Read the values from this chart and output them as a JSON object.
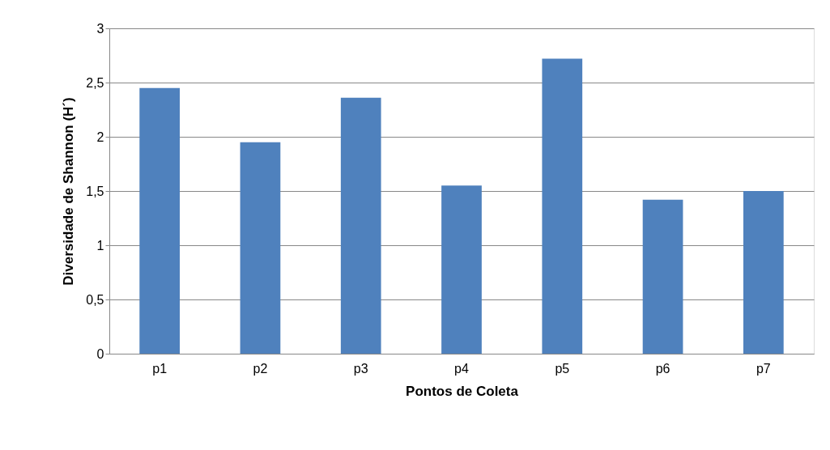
{
  "chart_data": {
    "type": "bar",
    "xlabel": "Pontos de Coleta",
    "ylabel": "Diversidade de Shannon (H´)",
    "categories": [
      "p1",
      "p2",
      "p3",
      "p4",
      "p5",
      "p6",
      "p7"
    ],
    "values": [
      2.45,
      1.95,
      2.36,
      1.55,
      2.72,
      1.42,
      1.5
    ],
    "color": "#4f81bd",
    "ylim": [
      0,
      3
    ],
    "yticks": [
      0,
      {
        "value": 0.5,
        "label": "0,5"
      },
      1,
      {
        "value": 1.5,
        "label": "1,5"
      },
      2,
      {
        "value": 2.5,
        "label": "2,5"
      },
      3
    ],
    "grid": "y"
  }
}
